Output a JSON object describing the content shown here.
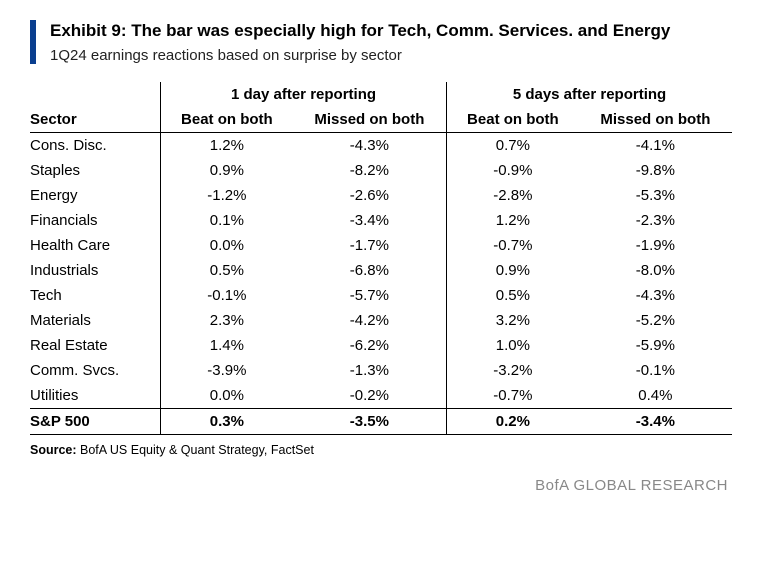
{
  "title": "Exhibit 9: The bar was especially high for Tech, Comm. Services. and Energy",
  "subtitle": "1Q24 earnings reactions based on surprise by sector",
  "columns": {
    "sector_label": "Sector",
    "group1": "1 day after reporting",
    "group2": "5 days after reporting",
    "beat": "Beat on both",
    "missed": "Missed on both"
  },
  "rows": [
    {
      "sector": "Cons. Disc.",
      "d1_beat": "1.2%",
      "d1_miss": "-4.3%",
      "d5_beat": "0.7%",
      "d5_miss": "-4.1%"
    },
    {
      "sector": "Staples",
      "d1_beat": "0.9%",
      "d1_miss": "-8.2%",
      "d5_beat": "-0.9%",
      "d5_miss": "-9.8%"
    },
    {
      "sector": "Energy",
      "d1_beat": "-1.2%",
      "d1_miss": "-2.6%",
      "d5_beat": "-2.8%",
      "d5_miss": "-5.3%"
    },
    {
      "sector": "Financials",
      "d1_beat": "0.1%",
      "d1_miss": "-3.4%",
      "d5_beat": "1.2%",
      "d5_miss": "-2.3%"
    },
    {
      "sector": "Health Care",
      "d1_beat": "0.0%",
      "d1_miss": "-1.7%",
      "d5_beat": "-0.7%",
      "d5_miss": "-1.9%"
    },
    {
      "sector": "Industrials",
      "d1_beat": "0.5%",
      "d1_miss": "-6.8%",
      "d5_beat": "0.9%",
      "d5_miss": "-8.0%"
    },
    {
      "sector": "Tech",
      "d1_beat": "-0.1%",
      "d1_miss": "-5.7%",
      "d5_beat": "0.5%",
      "d5_miss": "-4.3%"
    },
    {
      "sector": "Materials",
      "d1_beat": "2.3%",
      "d1_miss": "-4.2%",
      "d5_beat": "3.2%",
      "d5_miss": "-5.2%"
    },
    {
      "sector": "Real Estate",
      "d1_beat": "1.4%",
      "d1_miss": "-6.2%",
      "d5_beat": "1.0%",
      "d5_miss": "-5.9%"
    },
    {
      "sector": "Comm. Svcs.",
      "d1_beat": "-3.9%",
      "d1_miss": "-1.3%",
      "d5_beat": "-3.2%",
      "d5_miss": "-0.1%"
    },
    {
      "sector": "Utilities",
      "d1_beat": "0.0%",
      "d1_miss": "-0.2%",
      "d5_beat": "-0.7%",
      "d5_miss": "0.4%"
    }
  ],
  "total": {
    "sector": "S&P 500",
    "d1_beat": "0.3%",
    "d1_miss": "-3.5%",
    "d5_beat": "0.2%",
    "d5_miss": "-3.4%"
  },
  "source_label": "Source:",
  "source_text": " BofA US Equity & Quant Strategy, FactSet",
  "footer_brand": "BofA GLOBAL RESEARCH",
  "colors": {
    "accent_bar": "#0a3e8f",
    "text": "#000000",
    "footer": "#888888",
    "background": "#ffffff"
  },
  "type": "table"
}
